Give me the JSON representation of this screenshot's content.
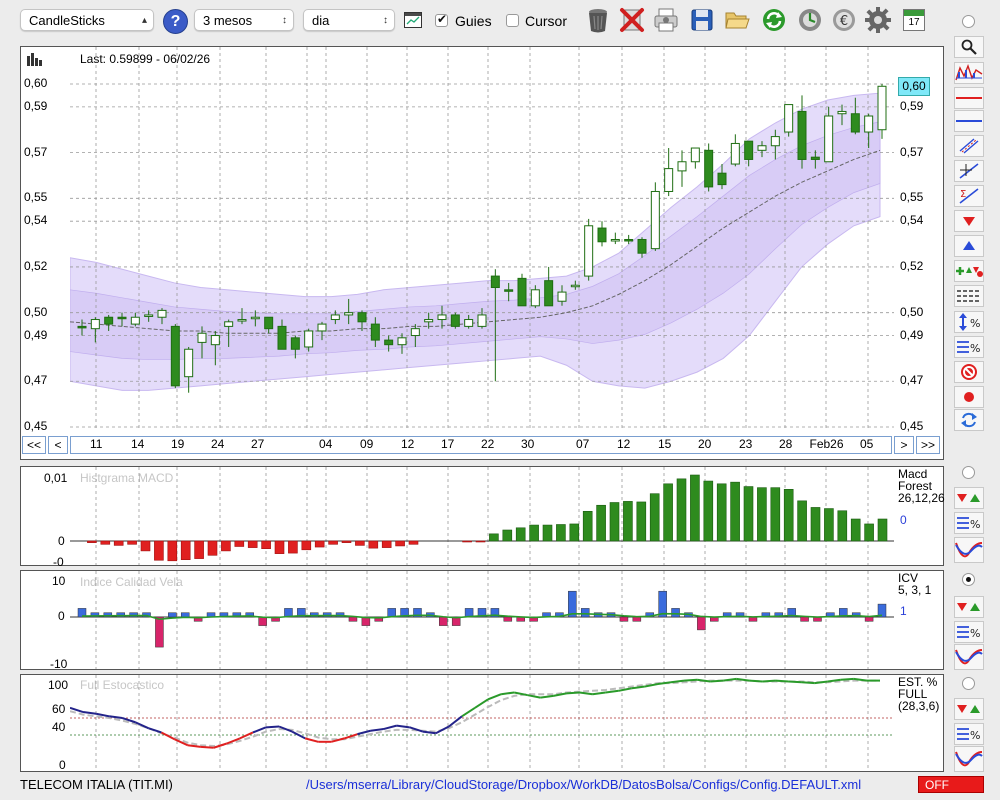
{
  "toolbar": {
    "chart_type": "CandleSticks",
    "help": "?",
    "period": "3 mesos",
    "interval": "dia",
    "guides_label": "Guies",
    "guides_checked": true,
    "cursor_label": "Cursor",
    "cursor_checked": false,
    "icons": [
      "delete-icon",
      "remove-icon",
      "print-icon",
      "save-icon",
      "folder-icon",
      "refresh-icon",
      "update-icon",
      "currency-icon",
      "settings-icon",
      "calendar-icon"
    ],
    "calendar_day": "17"
  },
  "price_panel": {
    "last_label": "Last: 0.59899 - 06/02/26",
    "current_price": "0,60",
    "nav": {
      "first": "<<",
      "prev": "<",
      "next": ">",
      "last": ">>"
    }
  },
  "macd_panel": {
    "label": "Histgrama MACD",
    "right_title": [
      "Macd",
      "Forest",
      "26,12,26"
    ],
    "right_value": "0"
  },
  "icv_panel": {
    "label": "Indice Calidad Vela",
    "right_title": [
      "ICV",
      "5, 3, 1"
    ],
    "right_value": "1"
  },
  "stoch_panel": {
    "label": "Full Estocastico",
    "right_title": [
      "EST. %",
      "FULL",
      "(28,3,6)"
    ]
  },
  "footer": {
    "instrument": "TELECOM ITALIA (TIT.MI)",
    "config_path": "/Users/mserra/Library/CloudStorage/Dropbox/WorkDB/DatosBolsa/Configs/Config.DEFAULT.xml",
    "status": "OFF"
  },
  "colors": {
    "up": "#2e8b1e",
    "down": "#2e8b1e",
    "macd_pos": "#2e8b1e",
    "macd_neg": "#e02020",
    "icv_pos": "#3a6bdc",
    "icv_neg": "#d8246a",
    "band": "#c8b8f0",
    "accent_price": "#7fe8f8"
  },
  "chart_data": [
    {
      "type": "candlestick",
      "title": "",
      "ylim": [
        0.45,
        0.61
      ],
      "y_ticks": [
        "0,60",
        "0,59",
        "0,57",
        "0,55",
        "0,54",
        "0,52",
        "0,50",
        "0,49",
        "0,47",
        "0,45"
      ],
      "x_ticks": [
        "11",
        "14",
        "19",
        "24",
        "27",
        "04",
        "09",
        "12",
        "17",
        "22",
        "30",
        "07",
        "12",
        "15",
        "20",
        "23",
        "28",
        "Feb26",
        "05"
      ],
      "candles": [
        {
          "o": 0.494,
          "h": 0.497,
          "l": 0.49,
          "c": 0.494,
          "up": false
        },
        {
          "o": 0.493,
          "h": 0.498,
          "l": 0.487,
          "c": 0.497,
          "up": true
        },
        {
          "o": 0.495,
          "h": 0.499,
          "l": 0.492,
          "c": 0.498,
          "up": false
        },
        {
          "o": 0.498,
          "h": 0.5,
          "l": 0.494,
          "c": 0.498,
          "up": false
        },
        {
          "o": 0.495,
          "h": 0.5,
          "l": 0.494,
          "c": 0.498,
          "up": true
        },
        {
          "o": 0.499,
          "h": 0.501,
          "l": 0.496,
          "c": 0.499,
          "up": true
        },
        {
          "o": 0.498,
          "h": 0.502,
          "l": 0.495,
          "c": 0.501,
          "up": true
        },
        {
          "o": 0.494,
          "h": 0.495,
          "l": 0.467,
          "c": 0.468,
          "up": false
        },
        {
          "o": 0.472,
          "h": 0.485,
          "l": 0.465,
          "c": 0.484,
          "up": true
        },
        {
          "o": 0.487,
          "h": 0.494,
          "l": 0.48,
          "c": 0.491,
          "up": true
        },
        {
          "o": 0.486,
          "h": 0.492,
          "l": 0.477,
          "c": 0.49,
          "up": true
        },
        {
          "o": 0.494,
          "h": 0.497,
          "l": 0.485,
          "c": 0.496,
          "up": true
        },
        {
          "o": 0.497,
          "h": 0.502,
          "l": 0.495,
          "c": 0.497,
          "up": true
        },
        {
          "o": 0.498,
          "h": 0.501,
          "l": 0.494,
          "c": 0.498,
          "up": true
        },
        {
          "o": 0.498,
          "h": 0.498,
          "l": 0.491,
          "c": 0.493,
          "up": false
        },
        {
          "o": 0.494,
          "h": 0.497,
          "l": 0.484,
          "c": 0.484,
          "up": false
        },
        {
          "o": 0.484,
          "h": 0.49,
          "l": 0.48,
          "c": 0.489,
          "up": false
        },
        {
          "o": 0.485,
          "h": 0.493,
          "l": 0.483,
          "c": 0.492,
          "up": true
        },
        {
          "o": 0.492,
          "h": 0.496,
          "l": 0.488,
          "c": 0.495,
          "up": true
        },
        {
          "o": 0.497,
          "h": 0.501,
          "l": 0.495,
          "c": 0.499,
          "up": true
        },
        {
          "o": 0.499,
          "h": 0.506,
          "l": 0.495,
          "c": 0.5,
          "up": true
        },
        {
          "o": 0.5,
          "h": 0.501,
          "l": 0.492,
          "c": 0.496,
          "up": false
        },
        {
          "o": 0.495,
          "h": 0.498,
          "l": 0.485,
          "c": 0.488,
          "up": false
        },
        {
          "o": 0.488,
          "h": 0.49,
          "l": 0.483,
          "c": 0.486,
          "up": false
        },
        {
          "o": 0.486,
          "h": 0.491,
          "l": 0.482,
          "c": 0.489,
          "up": true
        },
        {
          "o": 0.49,
          "h": 0.495,
          "l": 0.485,
          "c": 0.493,
          "up": true
        },
        {
          "o": 0.496,
          "h": 0.5,
          "l": 0.493,
          "c": 0.497,
          "up": true
        },
        {
          "o": 0.497,
          "h": 0.503,
          "l": 0.493,
          "c": 0.499,
          "up": true
        },
        {
          "o": 0.499,
          "h": 0.5,
          "l": 0.493,
          "c": 0.494,
          "up": false
        },
        {
          "o": 0.494,
          "h": 0.499,
          "l": 0.493,
          "c": 0.497,
          "up": true
        },
        {
          "o": 0.494,
          "h": 0.502,
          "l": 0.493,
          "c": 0.499,
          "up": true
        },
        {
          "o": 0.516,
          "h": 0.519,
          "l": 0.47,
          "c": 0.511,
          "up": false
        },
        {
          "o": 0.51,
          "h": 0.513,
          "l": 0.505,
          "c": 0.51,
          "up": false
        },
        {
          "o": 0.515,
          "h": 0.517,
          "l": 0.503,
          "c": 0.503,
          "up": false
        },
        {
          "o": 0.503,
          "h": 0.512,
          "l": 0.502,
          "c": 0.51,
          "up": true
        },
        {
          "o": 0.514,
          "h": 0.52,
          "l": 0.503,
          "c": 0.503,
          "up": false
        },
        {
          "o": 0.505,
          "h": 0.512,
          "l": 0.503,
          "c": 0.509,
          "up": true
        },
        {
          "o": 0.512,
          "h": 0.514,
          "l": 0.51,
          "c": 0.512,
          "up": true
        },
        {
          "o": 0.516,
          "h": 0.541,
          "l": 0.514,
          "c": 0.538,
          "up": true
        },
        {
          "o": 0.537,
          "h": 0.54,
          "l": 0.529,
          "c": 0.531,
          "up": false
        },
        {
          "o": 0.532,
          "h": 0.535,
          "l": 0.53,
          "c": 0.532,
          "up": true
        },
        {
          "o": 0.532,
          "h": 0.534,
          "l": 0.53,
          "c": 0.532,
          "up": false
        },
        {
          "o": 0.532,
          "h": 0.533,
          "l": 0.524,
          "c": 0.526,
          "up": false
        },
        {
          "o": 0.528,
          "h": 0.557,
          "l": 0.527,
          "c": 0.553,
          "up": true
        },
        {
          "o": 0.553,
          "h": 0.572,
          "l": 0.551,
          "c": 0.563,
          "up": true
        },
        {
          "o": 0.562,
          "h": 0.571,
          "l": 0.555,
          "c": 0.566,
          "up": true
        },
        {
          "o": 0.566,
          "h": 0.572,
          "l": 0.563,
          "c": 0.572,
          "up": true
        },
        {
          "o": 0.571,
          "h": 0.574,
          "l": 0.553,
          "c": 0.555,
          "up": false
        },
        {
          "o": 0.556,
          "h": 0.565,
          "l": 0.554,
          "c": 0.561,
          "up": false
        },
        {
          "o": 0.565,
          "h": 0.578,
          "l": 0.564,
          "c": 0.574,
          "up": true
        },
        {
          "o": 0.575,
          "h": 0.575,
          "l": 0.564,
          "c": 0.567,
          "up": false
        },
        {
          "o": 0.571,
          "h": 0.575,
          "l": 0.568,
          "c": 0.573,
          "up": true
        },
        {
          "o": 0.573,
          "h": 0.58,
          "l": 0.567,
          "c": 0.577,
          "up": true
        },
        {
          "o": 0.579,
          "h": 0.591,
          "l": 0.577,
          "c": 0.591,
          "up": true
        },
        {
          "o": 0.588,
          "h": 0.595,
          "l": 0.563,
          "c": 0.567,
          "up": false
        },
        {
          "o": 0.568,
          "h": 0.571,
          "l": 0.563,
          "c": 0.567,
          "up": false
        },
        {
          "o": 0.566,
          "h": 0.59,
          "l": 0.566,
          "c": 0.586,
          "up": true
        },
        {
          "o": 0.587,
          "h": 0.591,
          "l": 0.582,
          "c": 0.588,
          "up": true
        },
        {
          "o": 0.587,
          "h": 0.594,
          "l": 0.578,
          "c": 0.579,
          "up": false
        },
        {
          "o": 0.579,
          "h": 0.587,
          "l": 0.572,
          "c": 0.586,
          "up": true
        },
        {
          "o": 0.58,
          "h": 0.6,
          "l": 0.576,
          "c": 0.599,
          "up": true
        }
      ],
      "bands": {
        "upper": [
          0.524,
          0.522,
          0.519,
          0.516,
          0.513,
          0.511,
          0.51,
          0.509,
          0.508,
          0.507,
          0.507,
          0.508,
          0.51,
          0.511,
          0.512,
          0.513,
          0.514,
          0.514,
          0.515,
          0.516,
          0.52,
          0.526,
          0.536,
          0.546,
          0.555,
          0.565,
          0.576,
          0.583,
          0.589,
          0.593,
          0.595,
          0.596
        ],
        "lower": [
          0.47,
          0.468,
          0.466,
          0.466,
          0.467,
          0.468,
          0.469,
          0.47,
          0.471,
          0.472,
          0.473,
          0.474,
          0.475,
          0.476,
          0.477,
          0.478,
          0.479,
          0.48,
          0.481,
          0.477,
          0.47,
          0.468,
          0.467,
          0.47,
          0.474,
          0.48,
          0.49,
          0.505,
          0.52,
          0.53,
          0.538,
          0.542
        ],
        "ma": [
          0.496,
          0.495,
          0.494,
          0.493,
          0.492,
          0.492,
          0.491,
          0.491,
          0.491,
          0.492,
          0.492,
          0.493,
          0.493,
          0.494,
          0.494,
          0.495,
          0.496,
          0.497,
          0.498,
          0.5,
          0.503,
          0.508,
          0.514,
          0.521,
          0.529,
          0.537,
          0.544,
          0.551,
          0.557,
          0.562,
          0.567,
          0.571
        ]
      }
    },
    {
      "type": "bar",
      "name": "MACD histogram",
      "ylim": [
        -0.011,
        0.012
      ],
      "y_ticks": [
        "0,01",
        "0",
        "-0"
      ],
      "values": [
        0,
        -0.0003,
        -0.0006,
        -0.0008,
        -0.0006,
        -0.0018,
        -0.0035,
        -0.0036,
        -0.0034,
        -0.0032,
        -0.0026,
        -0.0018,
        -0.001,
        -0.0012,
        -0.0014,
        -0.0023,
        -0.0022,
        -0.0016,
        -0.0011,
        -0.0006,
        -0.0003,
        -0.0008,
        -0.0013,
        -0.0012,
        -0.0009,
        -0.0006,
        0,
        0,
        0,
        -0.0001,
        -0.0001,
        0.0013,
        0.002,
        0.0024,
        0.0029,
        0.0029,
        0.003,
        0.0031,
        0.0054,
        0.0065,
        0.007,
        0.0072,
        0.0071,
        0.0086,
        0.0104,
        0.0113,
        0.012,
        0.0109,
        0.0104,
        0.0107,
        0.0099,
        0.0097,
        0.0097,
        0.0094,
        0.0073,
        0.0061,
        0.0059,
        0.0055,
        0.004,
        0.0031,
        0.004
      ]
    },
    {
      "type": "bar",
      "name": "ICV",
      "ylim": [
        -10,
        10
      ],
      "y_ticks": [
        "10",
        "0",
        "-10"
      ],
      "values": [
        2,
        1,
        1,
        1,
        1,
        1,
        -7,
        1,
        1,
        -1,
        1,
        1,
        1,
        1,
        -2,
        -1,
        2,
        2,
        1,
        1,
        1,
        -1,
        -2,
        -1,
        2,
        2,
        2,
        1,
        -2,
        -2,
        2,
        2,
        2,
        -1,
        -1,
        -1,
        1,
        1,
        6,
        2,
        1,
        1,
        -1,
        -1,
        1,
        6,
        2,
        1,
        -3,
        -1,
        1,
        1,
        -1,
        1,
        1,
        2,
        -1,
        -1,
        1,
        2,
        1,
        -1,
        3
      ]
    },
    {
      "type": "line",
      "name": "Full Stochastic",
      "ylim": [
        0,
        110
      ],
      "y_ticks": [
        "100",
        "60",
        "40",
        "0"
      ],
      "k": [
        72,
        67,
        65,
        62,
        60,
        55,
        48,
        43,
        35,
        28,
        26,
        25,
        30,
        36,
        43,
        49,
        50,
        44,
        36,
        32,
        32,
        36,
        41,
        45,
        47,
        51,
        49,
        44,
        42,
        50,
        62,
        72,
        82,
        88,
        90,
        87,
        84,
        86,
        89,
        90,
        88,
        90,
        92,
        95,
        97,
        100,
        102,
        104,
        105,
        103,
        104,
        106,
        104,
        103,
        104,
        103,
        102,
        101,
        103,
        105,
        106,
        104,
        104
      ],
      "d": [
        68,
        64,
        62,
        60,
        57,
        53,
        48,
        42,
        37,
        31,
        28,
        27,
        29,
        33,
        38,
        44,
        47,
        46,
        42,
        37,
        35,
        35,
        38,
        41,
        44,
        46,
        46,
        45,
        44,
        48,
        55,
        64,
        73,
        81,
        86,
        88,
        88,
        88,
        90,
        91,
        92,
        93,
        95,
        97,
        99,
        101,
        101,
        102,
        103,
        104,
        104,
        104,
        104,
        103,
        103,
        103,
        103,
        102,
        102,
        103,
        104,
        104,
        104
      ]
    }
  ]
}
